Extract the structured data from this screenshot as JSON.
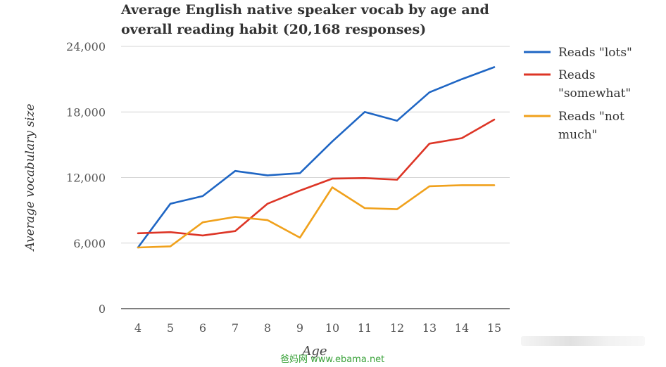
{
  "chart_data": {
    "type": "line",
    "title": "Average English native speaker vocab by age and overall reading habit (20,168 responses)",
    "title_lines": [
      "Average English native speaker vocab by age and",
      "overall reading habit (20,168 responses)"
    ],
    "xlabel": "Age",
    "ylabel": "Average vocabulary size",
    "x": [
      4,
      5,
      6,
      7,
      8,
      9,
      10,
      11,
      12,
      13,
      14,
      15
    ],
    "y_ticks": [
      "0",
      "6,000",
      "12,000",
      "18,000",
      "24,000"
    ],
    "y_tick_values": [
      0,
      6000,
      12000,
      18000,
      24000
    ],
    "ylim": [
      0,
      24000
    ],
    "grid": true,
    "legend_position": "right",
    "series": [
      {
        "name": "Reads \"lots\"",
        "legend_lines": [
          "Reads \"lots\""
        ],
        "color": "#1f66c4",
        "values": [
          5600,
          9600,
          10300,
          12600,
          12200,
          12400,
          15300,
          18000,
          17200,
          19800,
          21000,
          22100
        ]
      },
      {
        "name": "Reads \"somewhat\"",
        "legend_lines": [
          "Reads",
          "\"somewhat\""
        ],
        "color": "#dd3526",
        "values": [
          6900,
          7000,
          6700,
          7100,
          9600,
          10800,
          11900,
          11950,
          11800,
          15100,
          15600,
          17300
        ]
      },
      {
        "name": "Reads \"not much\"",
        "legend_lines": [
          "Reads \"not",
          "much\""
        ],
        "color": "#f0a11c",
        "values": [
          5600,
          5700,
          7900,
          8400,
          8100,
          6500,
          11100,
          9200,
          9100,
          11200,
          11300,
          11300
        ]
      }
    ]
  },
  "watermark": "爸妈网 www.ebama.net"
}
